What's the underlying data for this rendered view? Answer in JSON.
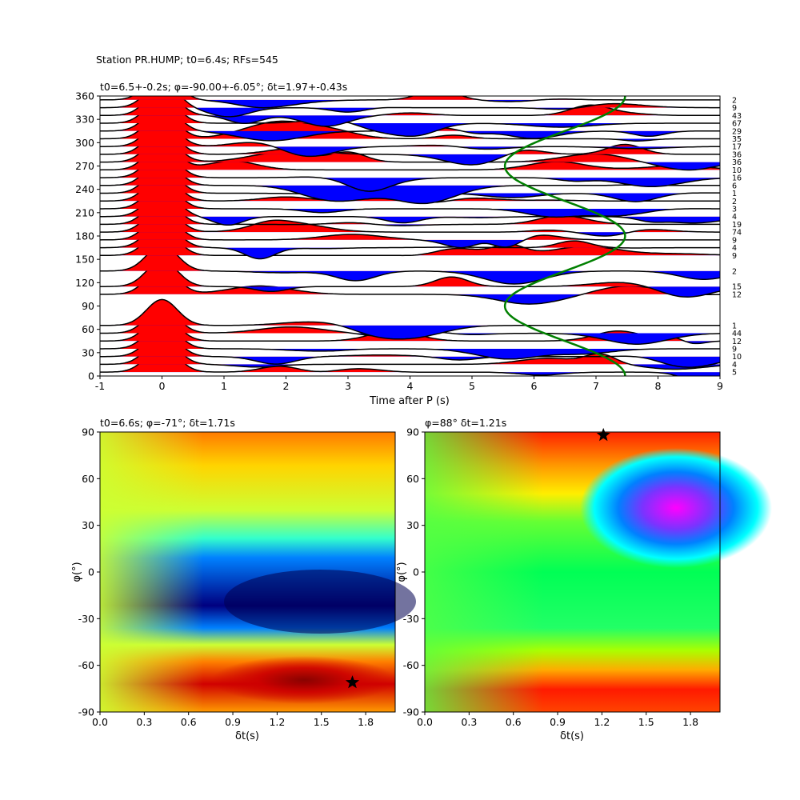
{
  "figure": {
    "suptitle": "Station PR.HUMP; t0=6.4s; RFs=545"
  },
  "chart_data": [
    {
      "type": "receiver-function-stack",
      "title": "t0=6.5+-0.2s; φ=-90.00+-6.05°; δt=1.97+-0.43s",
      "xlabel": "Time after P (s)",
      "ylabel": "",
      "xlim": [
        -1,
        9
      ],
      "ylim": [
        0,
        360
      ],
      "xticks": [
        -1,
        0,
        1,
        2,
        3,
        4,
        5,
        6,
        7,
        8,
        9
      ],
      "yticks": [
        0,
        30,
        60,
        90,
        120,
        150,
        180,
        210,
        240,
        270,
        300,
        330,
        360
      ],
      "positive_fill": "#ff0000",
      "negative_fill": "#0000ff",
      "trace_color": "#000000",
      "curve_color": "#008000",
      "green_curve": {
        "center_s": 6.5,
        "amplitude_s": 0.97,
        "period_deg": 180,
        "trough_at_deg": 90
      },
      "backazimuth_bins": [
        5,
        15,
        25,
        35,
        45,
        55,
        65,
        105,
        115,
        135,
        155,
        165,
        175,
        185,
        195,
        205,
        215,
        225,
        235,
        245,
        255,
        265,
        275,
        285,
        295,
        305,
        315,
        325,
        335,
        345,
        355
      ],
      "counts": [
        "5",
        "4",
        "10",
        "9",
        "12",
        "44",
        "1",
        "12",
        "15",
        "2",
        "9",
        "4",
        "9",
        "74",
        "19",
        "4",
        "3",
        "2",
        "1",
        "6",
        "16",
        "10",
        "36",
        "36",
        "17",
        "35",
        "29",
        "67",
        "43",
        "9",
        "2"
      ]
    },
    {
      "type": "heatmap",
      "title": "t0=6.6s; φ=-71°; δt=1.71s",
      "xlabel": "δt(s)",
      "ylabel": "φ(°)",
      "xlim": [
        0,
        2
      ],
      "ylim": [
        -90,
        90
      ],
      "xticks": [
        "0.0",
        "0.3",
        "0.6",
        "0.9",
        "1.2",
        "1.5",
        "1.8"
      ],
      "yticks": [
        "-90",
        "-60",
        "-30",
        "0",
        "30",
        "60",
        "90"
      ],
      "colormap": "jet",
      "best_fit": {
        "dt": 1.71,
        "phi": -71
      }
    },
    {
      "type": "heatmap",
      "title": "φ=88° δt=1.21s",
      "xlabel": "δt(s)",
      "ylabel": "φ(°)",
      "xlim": [
        0,
        2
      ],
      "ylim": [
        -90,
        90
      ],
      "xticks": [
        "0.0",
        "0.3",
        "0.6",
        "0.9",
        "1.2",
        "1.5",
        "1.8"
      ],
      "yticks": [
        "-90",
        "-60",
        "-30",
        "0",
        "30",
        "60",
        "90"
      ],
      "colormap": "gist_rainbow",
      "best_fit": {
        "dt": 1.21,
        "phi": 88
      }
    }
  ]
}
